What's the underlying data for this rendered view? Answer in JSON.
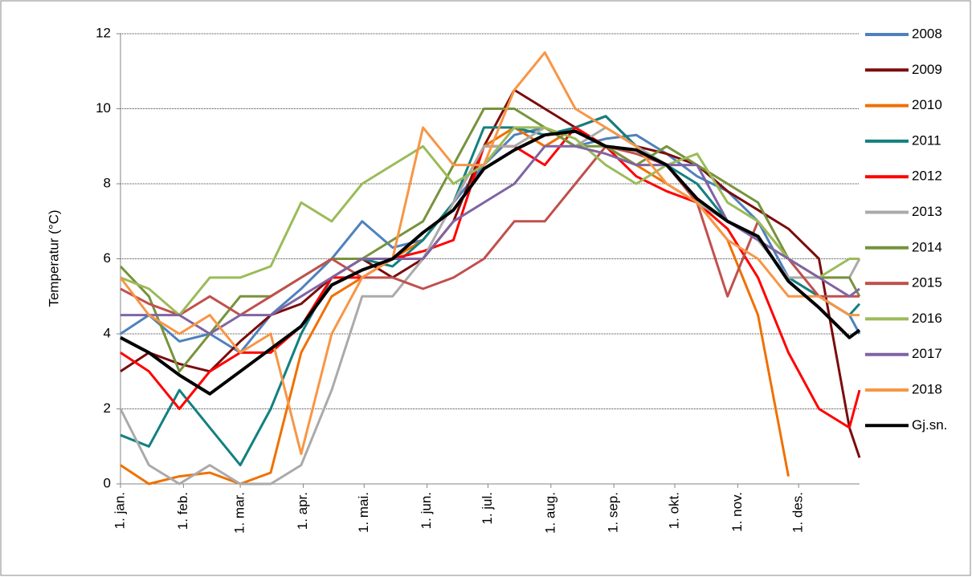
{
  "chart_data": {
    "type": "line",
    "y_label": "Temperatur (°C)",
    "xlim": [
      1,
      365
    ],
    "xticks": [
      {
        "value": 1,
        "label": "1. jan."
      },
      {
        "value": 32,
        "label": "1. feb."
      },
      {
        "value": 60,
        "label": "1. mar."
      },
      {
        "value": 91,
        "label": "1. apr."
      },
      {
        "value": 121,
        "label": "1. mai."
      },
      {
        "value": 152,
        "label": "1. jun."
      },
      {
        "value": 182,
        "label": "1. jul."
      },
      {
        "value": 213,
        "label": "1. aug."
      },
      {
        "value": 244,
        "label": "1. sep."
      },
      {
        "value": 274,
        "label": "1. okt."
      },
      {
        "value": 305,
        "label": "1. nov."
      },
      {
        "value": 335,
        "label": "1. des."
      }
    ],
    "ylim": [
      0,
      12
    ],
    "yticks": [
      0,
      2,
      4,
      6,
      8,
      10,
      12
    ],
    "grid": true,
    "legend": "right",
    "x": [
      1,
      15,
      30,
      45,
      60,
      75,
      90,
      105,
      120,
      135,
      150,
      165,
      180,
      195,
      210,
      225,
      240,
      255,
      270,
      285,
      300,
      315,
      330,
      345,
      360,
      365
    ],
    "series": [
      {
        "name": "2008",
        "color": "#4f81bd",
        "values": [
          4.0,
          4.5,
          3.8,
          4.0,
          3.5,
          4.5,
          5.2,
          6.0,
          7.0,
          6.3,
          6.5,
          7.5,
          8.5,
          9.3,
          9.5,
          9.0,
          9.2,
          9.3,
          8.8,
          8.2,
          7.8,
          7.0,
          5.5,
          5.0,
          4.5,
          4.0
        ]
      },
      {
        "name": "2009",
        "color": "#7b0c0c",
        "values": [
          3.0,
          3.5,
          3.2,
          3.0,
          3.8,
          4.5,
          4.8,
          5.5,
          6.0,
          5.5,
          6.0,
          7.0,
          9.0,
          10.5,
          10.0,
          9.5,
          9.8,
          9.0,
          8.8,
          8.5,
          7.8,
          7.3,
          6.8,
          6.0,
          1.5,
          0.7
        ]
      },
      {
        "name": "2010",
        "color": "#f07000",
        "values": [
          0.5,
          0.0,
          0.2,
          0.3,
          0.0,
          0.3,
          3.5,
          5.0,
          5.5,
          6.0,
          6.5,
          7.5,
          9.0,
          9.5,
          9.0,
          9.5,
          9.0,
          8.5,
          8.0,
          7.5,
          6.5,
          4.5,
          0.2,
          null,
          null,
          null
        ]
      },
      {
        "name": "2011",
        "color": "#138080",
        "values": [
          1.3,
          1.0,
          2.5,
          1.5,
          0.5,
          2.0,
          4.0,
          5.5,
          6.0,
          5.8,
          6.5,
          7.5,
          9.5,
          9.5,
          9.3,
          9.5,
          9.8,
          9.0,
          8.5,
          8.0,
          7.0,
          6.5,
          5.5,
          5.0,
          4.5,
          4.8
        ]
      },
      {
        "name": "2012",
        "color": "#ff0000",
        "values": [
          3.5,
          3.0,
          2.0,
          3.0,
          3.5,
          3.5,
          4.2,
          5.5,
          5.5,
          6.0,
          6.2,
          6.5,
          9.0,
          9.0,
          8.5,
          9.5,
          9.0,
          8.2,
          7.8,
          7.5,
          6.8,
          5.5,
          3.5,
          2.0,
          1.5,
          2.5
        ]
      },
      {
        "name": "2013",
        "color": "#aaaaaa",
        "values": [
          2.0,
          0.5,
          0.0,
          0.5,
          0.0,
          0.0,
          0.5,
          2.5,
          5.0,
          5.0,
          6.0,
          7.5,
          9.0,
          9.0,
          9.5,
          9.0,
          9.5,
          9.0,
          8.5,
          7.5,
          7.0,
          6.5,
          5.5,
          5.5,
          5.5,
          6.0
        ]
      },
      {
        "name": "2014",
        "color": "#77933c",
        "values": [
          5.8,
          5.0,
          3.0,
          4.0,
          5.0,
          5.0,
          5.5,
          6.0,
          6.0,
          6.5,
          7.0,
          8.5,
          10.0,
          10.0,
          9.5,
          9.0,
          9.0,
          8.5,
          9.0,
          8.5,
          8.0,
          7.5,
          6.0,
          5.5,
          5.5,
          5.0
        ]
      },
      {
        "name": "2015",
        "color": "#c0504d",
        "values": [
          5.2,
          4.8,
          4.5,
          5.0,
          4.5,
          5.0,
          5.5,
          6.0,
          5.5,
          5.5,
          5.2,
          5.5,
          6.0,
          7.0,
          7.0,
          8.0,
          9.0,
          8.8,
          8.5,
          7.5,
          5.0,
          7.0,
          6.0,
          5.0,
          5.0,
          5.0
        ]
      },
      {
        "name": "2016",
        "color": "#9bbb59",
        "values": [
          5.5,
          5.2,
          4.5,
          5.5,
          5.5,
          5.8,
          7.5,
          7.0,
          8.0,
          8.5,
          9.0,
          8.0,
          8.5,
          9.5,
          9.5,
          9.2,
          8.5,
          8.0,
          8.5,
          8.8,
          7.5,
          7.0,
          6.0,
          5.5,
          6.0,
          6.0
        ]
      },
      {
        "name": "2017",
        "color": "#8064a2",
        "values": [
          4.5,
          4.5,
          4.5,
          4.0,
          4.5,
          4.5,
          5.0,
          5.5,
          6.0,
          6.0,
          6.0,
          7.0,
          7.5,
          8.0,
          9.0,
          9.0,
          8.8,
          8.5,
          8.5,
          8.5,
          7.0,
          6.5,
          6.0,
          5.5,
          5.0,
          5.2
        ]
      },
      {
        "name": "2018",
        "color": "#f79646",
        "values": [
          5.5,
          4.5,
          4.0,
          4.5,
          3.5,
          4.0,
          0.8,
          4.0,
          5.5,
          6.0,
          9.5,
          8.5,
          8.5,
          10.5,
          11.5,
          10.0,
          9.5,
          9.0,
          8.0,
          7.5,
          6.5,
          6.0,
          5.0,
          5.0,
          4.5,
          4.5
        ]
      },
      {
        "name": "Gj.sn.",
        "color": "#000000",
        "values": [
          3.9,
          3.5,
          2.9,
          2.4,
          3.0,
          3.6,
          4.2,
          5.3,
          5.7,
          6.0,
          6.7,
          7.3,
          8.4,
          8.9,
          9.3,
          9.4,
          9.0,
          8.9,
          8.5,
          7.6,
          7.0,
          6.6,
          5.4,
          4.7,
          3.9,
          4.1
        ]
      }
    ]
  }
}
